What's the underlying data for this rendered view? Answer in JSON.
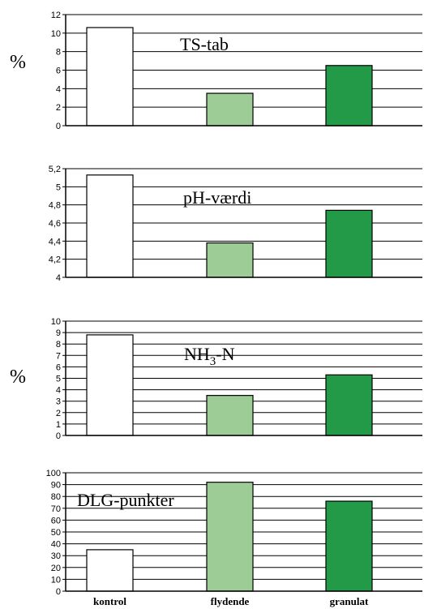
{
  "categories": [
    "kontrol",
    "flydende",
    "granulat"
  ],
  "colors": {
    "kontrol": "#ffffff",
    "flydende": "#9ecc97",
    "granulat": "#239a48",
    "outline": "#000000"
  },
  "chart_data": [
    {
      "type": "bar",
      "title": "TS-tab",
      "unit": "%",
      "categories": [
        "kontrol",
        "flydende",
        "granulat"
      ],
      "values": [
        10.6,
        3.5,
        6.5
      ],
      "ylim": [
        0,
        12
      ],
      "yticks": [
        "0",
        "2",
        "4",
        "6",
        "8",
        "10",
        "12"
      ],
      "grid": true
    },
    {
      "type": "bar",
      "title": "pH-værdi",
      "unit": "",
      "categories": [
        "kontrol",
        "flydende",
        "granulat"
      ],
      "values": [
        5.13,
        4.38,
        4.74
      ],
      "ylim": [
        4,
        5.2
      ],
      "yticks": [
        "4",
        "4,2",
        "4,4",
        "4,6",
        "4,8",
        "5",
        "5,2"
      ],
      "grid": true
    },
    {
      "type": "bar",
      "title": "NH3-N",
      "title_parts": [
        "NH",
        "3",
        "-N"
      ],
      "unit": "%",
      "categories": [
        "kontrol",
        "flydende",
        "granulat"
      ],
      "values": [
        8.8,
        3.5,
        5.3
      ],
      "ylim": [
        0,
        10
      ],
      "yticks": [
        "0",
        "1",
        "2",
        "3",
        "4",
        "5",
        "6",
        "7",
        "8",
        "9",
        "10"
      ],
      "grid": true
    },
    {
      "type": "bar",
      "title": "DLG-punkter",
      "unit": "",
      "categories": [
        "kontrol",
        "flydende",
        "granulat"
      ],
      "values": [
        35,
        92,
        76
      ],
      "ylim": [
        0,
        100
      ],
      "yticks": [
        "0",
        "10",
        "20",
        "30",
        "40",
        "50",
        "60",
        "70",
        "80",
        "90",
        "100"
      ],
      "grid": true
    }
  ]
}
